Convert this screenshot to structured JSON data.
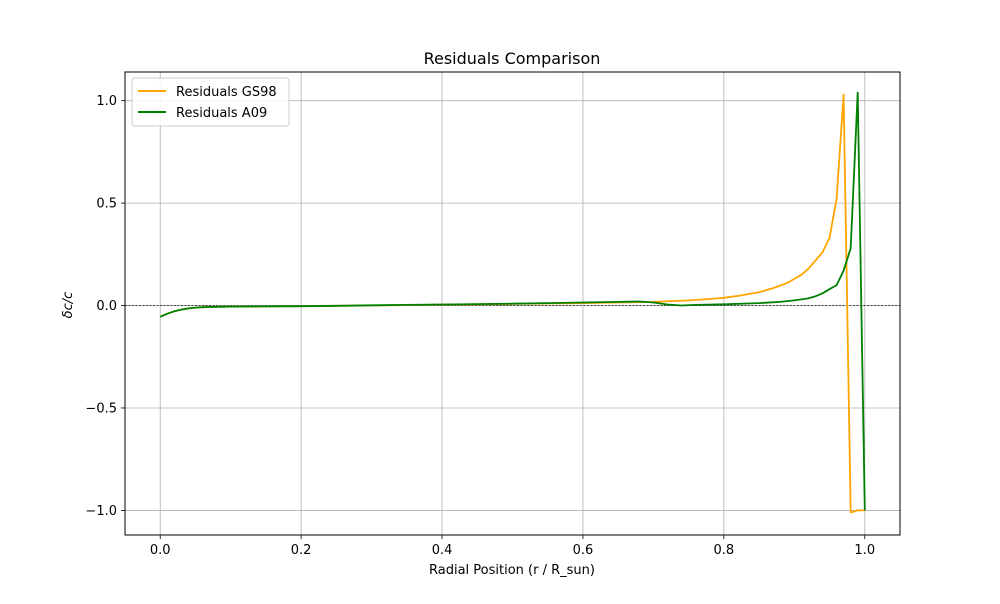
{
  "chart_data": {
    "type": "line",
    "title": "Residuals Comparison",
    "xlabel": "Radial Position (r / R_sun)",
    "ylabel": "δc/c",
    "xlim": [
      -0.05,
      1.05
    ],
    "ylim": [
      -1.12,
      1.14
    ],
    "xticks": [
      0.0,
      0.2,
      0.4,
      0.6,
      0.8,
      1.0
    ],
    "xtick_labels": [
      "0.0",
      "0.2",
      "0.4",
      "0.6",
      "0.8",
      "1.0"
    ],
    "yticks": [
      -1.0,
      -0.5,
      0.0,
      0.5,
      1.0
    ],
    "ytick_labels": [
      "−1.0",
      "−0.5",
      "0.0",
      "0.5",
      "1.0"
    ],
    "grid": true,
    "zero_line": {
      "y": 0,
      "color": "#000000",
      "style": "dashed"
    },
    "legend": {
      "location": "top-left"
    },
    "series": [
      {
        "name": "Residuals GS98",
        "color": "#ffa500",
        "x": [
          0.0,
          0.01,
          0.02,
          0.03,
          0.04,
          0.05,
          0.06,
          0.08,
          0.1,
          0.15,
          0.2,
          0.25,
          0.3,
          0.35,
          0.4,
          0.45,
          0.5,
          0.55,
          0.6,
          0.65,
          0.7,
          0.75,
          0.78,
          0.8,
          0.82,
          0.85,
          0.87,
          0.89,
          0.9,
          0.91,
          0.92,
          0.93,
          0.94,
          0.95,
          0.96,
          0.97,
          0.98,
          0.99,
          1.0
        ],
        "y": [
          -0.055,
          -0.04,
          -0.028,
          -0.02,
          -0.014,
          -0.01,
          -0.008,
          -0.006,
          -0.005,
          -0.004,
          -0.003,
          -0.001,
          0.0,
          0.002,
          0.004,
          0.006,
          0.008,
          0.01,
          0.012,
          0.015,
          0.018,
          0.025,
          0.032,
          0.038,
          0.047,
          0.065,
          0.085,
          0.11,
          0.13,
          0.15,
          0.18,
          0.22,
          0.26,
          0.33,
          0.52,
          1.03,
          -1.01,
          -1.0,
          -1.0
        ]
      },
      {
        "name": "Residuals A09",
        "color": "#008000",
        "x": [
          0.0,
          0.01,
          0.02,
          0.03,
          0.04,
          0.05,
          0.06,
          0.08,
          0.1,
          0.15,
          0.2,
          0.25,
          0.3,
          0.35,
          0.4,
          0.45,
          0.5,
          0.55,
          0.6,
          0.65,
          0.68,
          0.7,
          0.72,
          0.74,
          0.76,
          0.8,
          0.85,
          0.88,
          0.9,
          0.92,
          0.93,
          0.94,
          0.95,
          0.96,
          0.97,
          0.98,
          0.99,
          1.0
        ],
        "y": [
          -0.055,
          -0.04,
          -0.028,
          -0.02,
          -0.014,
          -0.01,
          -0.008,
          -0.006,
          -0.005,
          -0.004,
          -0.003,
          -0.001,
          0.001,
          0.003,
          0.005,
          0.007,
          0.009,
          0.012,
          0.015,
          0.018,
          0.02,
          0.015,
          0.005,
          0.0,
          0.003,
          0.006,
          0.012,
          0.018,
          0.025,
          0.035,
          0.045,
          0.06,
          0.08,
          0.1,
          0.17,
          0.28,
          1.04,
          -1.0
        ]
      }
    ]
  }
}
